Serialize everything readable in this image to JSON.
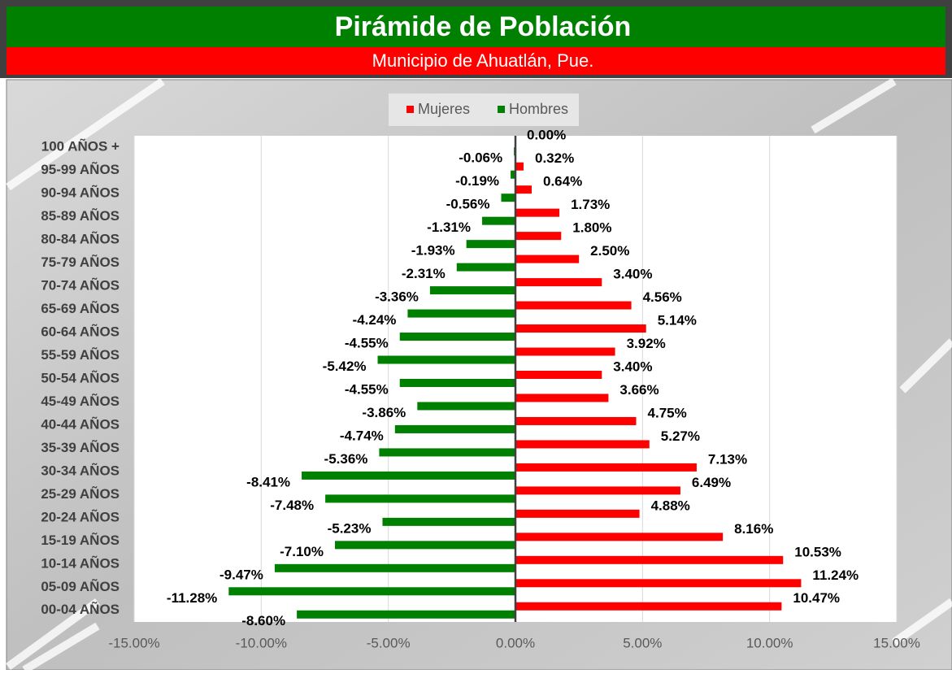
{
  "chart_data": {
    "type": "bar",
    "orientation": "horizontal",
    "title": "Pirámide de Población",
    "subtitle": "Municipio de Ahuatlán, Pue.",
    "categories": [
      "100 AÑOS +",
      "95-99 AÑOS",
      "90-94 AÑOS",
      "85-89 AÑOS",
      "80-84 AÑOS",
      "75-79 AÑOS",
      "70-74 AÑOS",
      "65-69 AÑOS",
      "60-64 AÑOS",
      "55-59 AÑOS",
      "50-54 AÑOS",
      "45-49 AÑOS",
      "40-44 AÑOS",
      "35-39 AÑOS",
      "30-34 AÑOS",
      "25-29 AÑOS",
      "20-24 AÑOS",
      "15-19 AÑOS",
      "10-14 AÑOS",
      "05-09 AÑOS",
      "00-04 AÑOS"
    ],
    "series": [
      {
        "name": "Mujeres",
        "color": "#ff0000",
        "values": [
          0.0,
          0.32,
          0.64,
          1.73,
          1.8,
          2.5,
          3.4,
          4.56,
          5.14,
          3.92,
          3.4,
          3.66,
          4.75,
          5.27,
          7.13,
          6.49,
          4.88,
          8.16,
          10.53,
          11.24,
          10.47
        ],
        "value_labels": [
          "0.00%",
          "0.32%",
          "0.64%",
          "1.73%",
          "1.80%",
          "2.50%",
          "3.40%",
          "4.56%",
          "5.14%",
          "3.92%",
          "3.40%",
          "3.66%",
          "4.75%",
          "5.27%",
          "7.13%",
          "6.49%",
          "4.88%",
          "8.16%",
          "10.53%",
          "11.24%",
          "10.47%"
        ]
      },
      {
        "name": "Hombres",
        "color": "#008000",
        "values": [
          -0.06,
          -0.19,
          -0.56,
          -1.31,
          -1.93,
          -2.31,
          -3.36,
          -4.24,
          -4.55,
          -5.42,
          -4.55,
          -3.86,
          -4.74,
          -5.36,
          -8.41,
          -7.48,
          -5.23,
          -7.1,
          -9.47,
          -11.28,
          -8.6
        ],
        "value_labels": [
          "-0.06%",
          "-0.19%",
          "-0.56%",
          "-1.31%",
          "-1.93%",
          "-2.31%",
          "-3.36%",
          "-4.24%",
          "-4.55%",
          "-5.42%",
          "-4.55%",
          "-3.86%",
          "-4.74%",
          "-5.36%",
          "-8.41%",
          "-7.48%",
          "-5.23%",
          "-7.10%",
          "-9.47%",
          "-11.28%",
          "-8.60%"
        ]
      }
    ],
    "xlim": [
      -15,
      15
    ],
    "xticks": [
      {
        "value": -15,
        "label": "-15.00%"
      },
      {
        "value": -10,
        "label": "-10.00%"
      },
      {
        "value": -5,
        "label": "-5.00%"
      },
      {
        "value": 0,
        "label": "0.00%"
      },
      {
        "value": 5,
        "label": "5.00%"
      },
      {
        "value": 10,
        "label": "10.00%"
      },
      {
        "value": 15,
        "label": "15.00%"
      }
    ],
    "grid": true,
    "legend": "top"
  }
}
